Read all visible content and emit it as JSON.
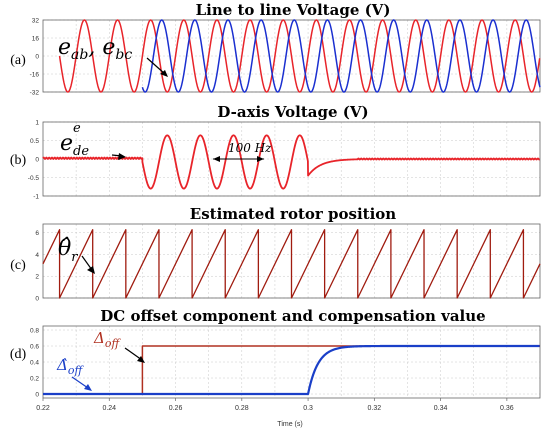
{
  "chart_data": [
    {
      "type": "line",
      "panel_label": "(a)",
      "title": "Line to line Voltage (V)",
      "xlim": [
        0.22,
        0.37
      ],
      "ylim": [
        -32,
        32
      ],
      "yticks": [
        "32",
        "16",
        "0",
        "-16",
        "-32"
      ],
      "grid": true,
      "series": [
        {
          "name": "e_ab",
          "color": "#e8242a",
          "waveform": "sine",
          "amplitude": 32,
          "frequency_hz": 100,
          "phase_deg": 0,
          "t_start": 0.225
        },
        {
          "name": "e_bc",
          "color": "#1a2fd0",
          "waveform": "sine",
          "amplitude": 32,
          "frequency_hz": 100,
          "phase_deg": -120,
          "t_start": 0.25
        }
      ],
      "annotation": {
        "text": "e_ab, e_bc",
        "display": [
          "e",
          "ab",
          ", e",
          "bc"
        ]
      }
    },
    {
      "type": "line",
      "panel_label": "(b)",
      "title": "D-axis Voltage (V)",
      "xlim": [
        0.22,
        0.37
      ],
      "ylim": [
        -1,
        1
      ],
      "yticks": [
        "1",
        "0.5",
        "0",
        "-0.5",
        "-1"
      ],
      "grid": true,
      "series": [
        {
          "name": "e_de^e",
          "color": "#e8242a",
          "segments": [
            {
              "t": [
                0.22,
                0.25
              ],
              "kind": "ripple",
              "level": 0.02,
              "ripple": 0.02
            },
            {
              "t": [
                0.25,
                0.3
              ],
              "kind": "sine",
              "amplitude": 0.72,
              "frequency_hz": 100,
              "phase_deg": 180,
              "offset": -0.08
            },
            {
              "t": [
                0.3,
                0.315
              ],
              "kind": "recovery",
              "from": -0.45,
              "to": 0.0
            },
            {
              "t": [
                0.315,
                0.37
              ],
              "kind": "ripple",
              "level": 0.0,
              "ripple": 0.015
            }
          ]
        }
      ],
      "annotation": {
        "text": "e_de^e",
        "display": [
          "e",
          "de",
          "e"
        ]
      },
      "frequency_annotation": "100 Hz"
    },
    {
      "type": "line",
      "panel_label": "(c)",
      "title": "Estimated rotor position",
      "xlim": [
        0.22,
        0.37
      ],
      "ylim": [
        0,
        6.8
      ],
      "yticks": [
        "6",
        "4",
        "2",
        "0"
      ],
      "grid": true,
      "series": [
        {
          "name": "θ̂_r",
          "color": "#a01c10",
          "waveform": "sawtooth",
          "min": 0,
          "max": 6.28,
          "frequency_hz": 100,
          "t_first_reset": 0.225
        }
      ],
      "annotation": {
        "text": "θ̂_r",
        "display": [
          "θ̂",
          "r"
        ]
      }
    },
    {
      "type": "line",
      "panel_label": "(d)",
      "title": "DC offset component and compensation value",
      "xlim": [
        0.22,
        0.37
      ],
      "ylim": [
        -0.05,
        0.85
      ],
      "yticks": [
        "0.8",
        "0.6",
        "0.4",
        "0.2",
        "0"
      ],
      "xticks": [
        "0.22",
        "0.24",
        "0.26",
        "0.28",
        "0.3",
        "0.32",
        "0.34",
        "0.36"
      ],
      "xlabel": "Time (s)",
      "grid": true,
      "series": [
        {
          "name": "Δ_off",
          "color": "#b03020",
          "kind": "step",
          "t_step": 0.25,
          "before": 0.0,
          "after": 0.6
        },
        {
          "name": "Δ̂_off",
          "color": "#1a3fc8",
          "kind": "first_order",
          "t_step": 0.3,
          "before": 0.0,
          "after": 0.6,
          "tau_s": 0.003
        }
      ],
      "annotations": [
        {
          "text": "Δ_off",
          "display": [
            "Δ",
            "off"
          ]
        },
        {
          "text": "Δ̂_off",
          "display": [
            "Δ̂",
            "off"
          ]
        }
      ]
    }
  ]
}
